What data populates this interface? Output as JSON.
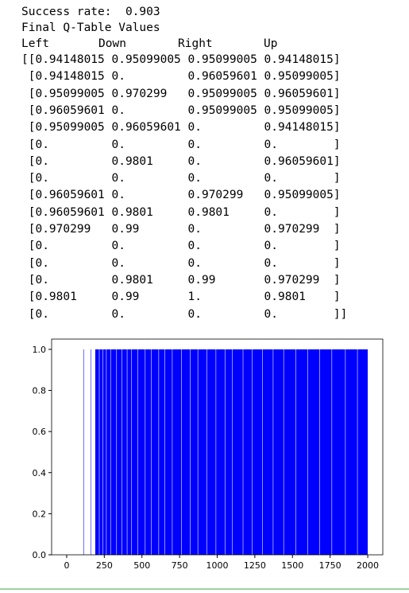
{
  "success_rate": "Success rate:  0.903",
  "qtable": {
    "title": "Final Q-Table Values",
    "columns": [
      "Left",
      "Down",
      "Right",
      "Up"
    ],
    "rows": [
      "[[0.94148015 0.95099005 0.95099005 0.94148015]",
      " [0.94148015 0.         0.96059601 0.95099005]",
      " [0.95099005 0.970299   0.95099005 0.96059601]",
      " [0.96059601 0.         0.95099005 0.95099005]",
      " [0.95099005 0.96059601 0.         0.94148015]",
      " [0.         0.         0.         0.        ]",
      " [0.         0.9801     0.         0.96059601]",
      " [0.         0.         0.         0.        ]",
      " [0.96059601 0.         0.970299   0.95099005]",
      " [0.96059601 0.9801     0.9801     0.        ]",
      " [0.970299   0.99       0.         0.970299  ]",
      " [0.         0.         0.         0.        ]",
      " [0.         0.         0.         0.        ]",
      " [0.         0.9801     0.99       0.970299  ]",
      " [0.9801     0.99       1.         0.9801    ]",
      " [0.         0.         0.         0.        ]]"
    ]
  },
  "chart_data": {
    "type": "histogram",
    "color": "#0000ff",
    "bins": [
      0,
      112,
      115,
      160,
      163,
      190,
      215,
      218,
      240,
      243,
      262,
      265,
      290,
      293,
      330,
      333,
      365,
      368,
      400,
      403,
      430,
      433,
      470,
      473,
      520,
      523,
      560,
      563,
      610,
      613,
      650,
      653,
      700,
      703,
      760,
      763,
      820,
      823,
      870,
      873,
      930,
      933,
      990,
      993,
      1050,
      1053,
      1100,
      1103,
      1170,
      1173,
      1230,
      1233,
      1300,
      1303,
      1370,
      1373,
      1440,
      1443,
      1520,
      1523,
      1600,
      1603,
      1680,
      1683,
      1760,
      1763,
      1850,
      1853,
      1930,
      1933,
      2000
    ],
    "values": [
      0,
      1,
      0,
      1,
      0,
      1,
      0,
      1,
      0,
      1,
      0,
      1,
      0,
      1,
      0,
      1,
      0,
      1,
      0,
      1,
      0,
      1,
      0,
      1,
      0,
      1,
      0,
      1,
      0,
      1,
      0,
      1,
      0,
      1,
      0,
      1,
      0,
      1,
      0,
      1,
      0,
      1,
      0,
      1,
      0,
      1,
      0,
      1,
      0,
      1,
      0,
      1,
      0,
      1,
      0,
      1,
      0,
      1,
      0,
      1,
      0,
      1,
      0,
      1,
      0,
      1,
      0,
      1,
      0,
      1
    ],
    "xlim": [
      -100,
      2100
    ],
    "xticks": [
      0,
      250,
      500,
      750,
      1000,
      1250,
      1500,
      1750,
      2000
    ],
    "ylim": [
      0,
      1.05
    ],
    "yticks": [
      {
        "value": 0,
        "label": "0.0"
      },
      {
        "value": 0.2,
        "label": "0.2"
      },
      {
        "value": 0.4,
        "label": "0.4"
      },
      {
        "value": 0.6,
        "label": "0.6"
      },
      {
        "value": 0.8,
        "label": "0.8"
      },
      {
        "value": 1,
        "label": "1.0"
      }
    ]
  }
}
